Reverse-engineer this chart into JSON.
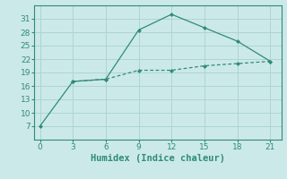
{
  "xlabel": "Humidex (Indice chaleur)",
  "line1_x": [
    0,
    3,
    6,
    9,
    12,
    15,
    18,
    21
  ],
  "line1_y": [
    7,
    17,
    17.5,
    28.5,
    32,
    29,
    26,
    21.5
  ],
  "line2_x": [
    3,
    6,
    9,
    12,
    15,
    18,
    21
  ],
  "line2_y": [
    17,
    17.5,
    19.5,
    19.5,
    20.5,
    21,
    21.5
  ],
  "line_color": "#2e8b7a",
  "bg_color": "#cce9e9",
  "grid_color": "#aed4d4",
  "xlim": [
    -0.5,
    22
  ],
  "ylim": [
    4,
    34
  ],
  "xticks": [
    0,
    3,
    6,
    9,
    12,
    15,
    18,
    21
  ],
  "yticks": [
    7,
    10,
    13,
    16,
    19,
    22,
    25,
    28,
    31
  ],
  "tick_fontsize": 6.5,
  "label_fontsize": 7.5
}
